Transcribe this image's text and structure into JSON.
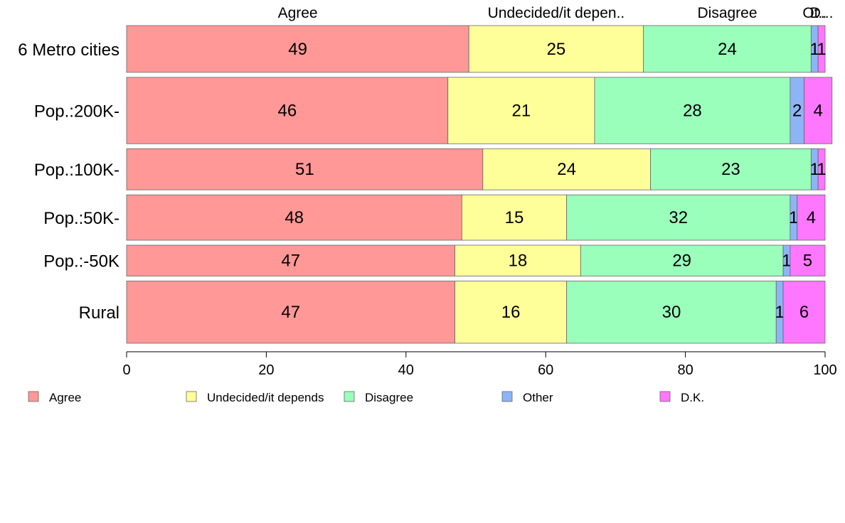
{
  "chart_data": {
    "type": "bar",
    "orientation": "horizontal",
    "stacked": true,
    "categories": [
      "6 Metro cities",
      "Pop.:200K-",
      "Pop.:100K-",
      "Pop.:50K-",
      "Pop.:-50K",
      "Rural"
    ],
    "series": [
      {
        "name": "Agree",
        "color": "#ff9896",
        "values": [
          49,
          46,
          51,
          48,
          47,
          47
        ]
      },
      {
        "name": "Undecided/it depends",
        "color": "#ffff99",
        "values": [
          25,
          21,
          24,
          15,
          18,
          16
        ]
      },
      {
        "name": "Disagree",
        "color": "#99ffbb",
        "values": [
          24,
          28,
          23,
          32,
          29,
          30
        ]
      },
      {
        "name": "Other",
        "color": "#8eb4f8",
        "values": [
          1,
          2,
          1,
          1,
          1,
          1
        ]
      },
      {
        "name": "D.K.",
        "color": "#ff77ff",
        "values": [
          1,
          4,
          1,
          4,
          5,
          6
        ]
      }
    ],
    "data_labels": [
      [
        "49",
        "25",
        "24",
        "1",
        "1"
      ],
      [
        "46",
        "21",
        "28",
        "2",
        "4"
      ],
      [
        "51",
        "24",
        "23",
        "1",
        "1"
      ],
      [
        "48",
        "15",
        "32",
        "1",
        "4"
      ],
      [
        "47",
        "18",
        "29",
        "1",
        "5"
      ],
      [
        "47",
        "16",
        "30",
        "1",
        "6"
      ]
    ],
    "column_headers": [
      "Agree",
      "Undecided/it depen..",
      "Disagree",
      "Ot..",
      "D..."
    ],
    "xlim": [
      0,
      100
    ],
    "xticks": [
      "0",
      "20",
      "40",
      "60",
      "80",
      "100"
    ],
    "row_weights": [
      1.0,
      1.42,
      0.88,
      0.97,
      0.66,
      1.33
    ],
    "legend": [
      "Agree",
      "Undecided/it depends",
      "Disagree",
      "Other",
      "D.K."
    ],
    "legend_position": "bottom",
    "grid": false,
    "title": "",
    "xlabel": "",
    "ylabel": ""
  }
}
